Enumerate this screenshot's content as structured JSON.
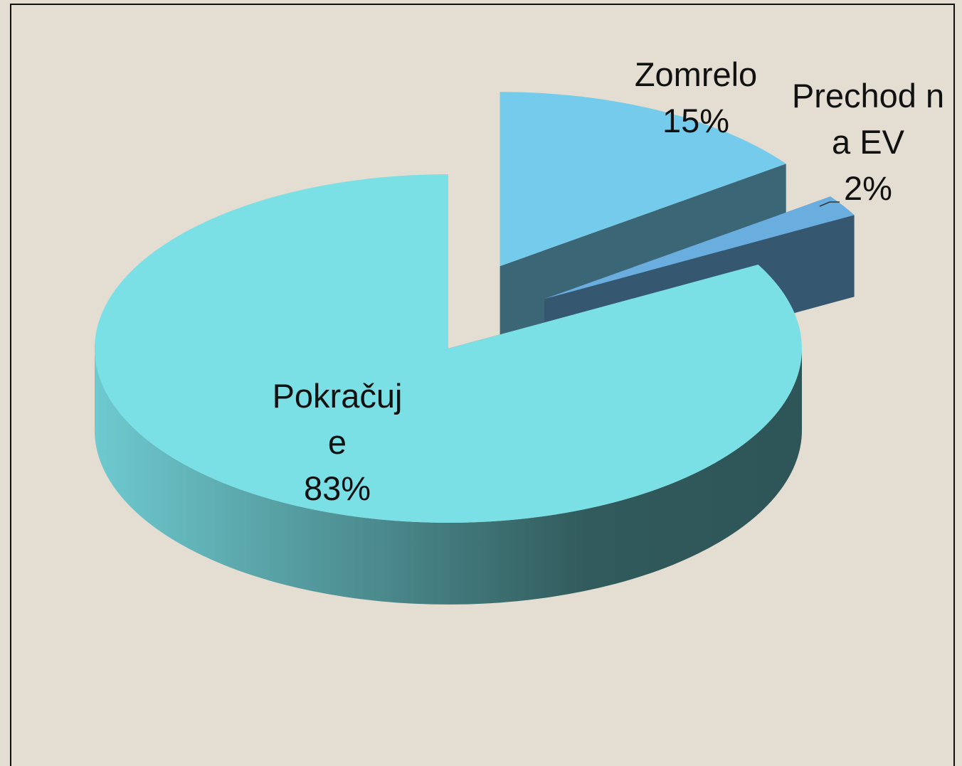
{
  "chart_data": {
    "type": "pie",
    "categories": [
      "Zomrelo",
      "Prechod na EV",
      "Pokračuje"
    ],
    "values": [
      15,
      2,
      83
    ],
    "value_labels": [
      "15%",
      "2%",
      "83%"
    ],
    "colors": [
      "#74cbec",
      "#6aaee0",
      "#7ae0e6"
    ]
  }
}
